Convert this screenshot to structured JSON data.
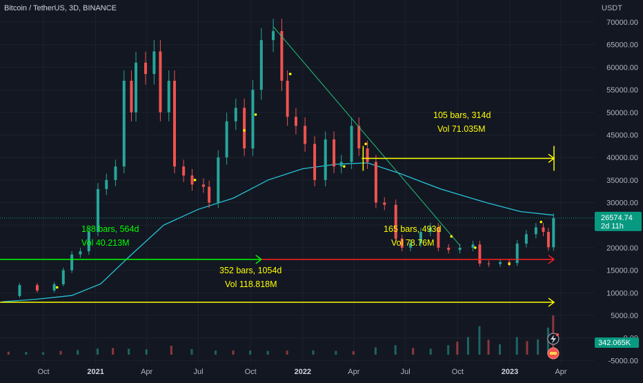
{
  "header": {
    "symbol_title": "Bitcoin / TetherUS, 3D, BINANCE",
    "currency": "USDT"
  },
  "chart_data": {
    "type": "candlestick",
    "y_ticks": [
      "70000.00",
      "65000.00",
      "60000.00",
      "55000.00",
      "50000.00",
      "45000.00",
      "40000.00",
      "35000.00",
      "30000.00",
      "25000.00",
      "20000.00",
      "15000.00",
      "10000.00",
      "5000.00",
      "0.00",
      "-5000.00"
    ],
    "x_ticks": [
      "Oct",
      "2021",
      "Apr",
      "Jul",
      "Oct",
      "2022",
      "Apr",
      "Jul",
      "Oct",
      "2023",
      "Apr"
    ],
    "ylim": [
      -5000,
      71500
    ],
    "price_series": [
      {
        "date": "2020-07-20",
        "close": 9300
      },
      {
        "date": "2020-08-20",
        "close": 11700
      },
      {
        "date": "2020-09-20",
        "close": 10500
      },
      {
        "date": "2020-10-20",
        "close": 11900
      },
      {
        "date": "2020-11-05",
        "close": 15000
      },
      {
        "date": "2020-11-20",
        "close": 18500
      },
      {
        "date": "2020-12-05",
        "close": 19200
      },
      {
        "date": "2020-12-20",
        "close": 23500
      },
      {
        "date": "2021-01-05",
        "close": 33000
      },
      {
        "date": "2021-01-20",
        "close": 35000
      },
      {
        "date": "2021-02-05",
        "close": 38000
      },
      {
        "date": "2021-02-20",
        "close": 57000
      },
      {
        "date": "2021-03-05",
        "close": 50000
      },
      {
        "date": "2021-03-13",
        "close": 61000
      },
      {
        "date": "2021-03-30",
        "close": 58500
      },
      {
        "date": "2021-04-14",
        "close": 63500
      },
      {
        "date": "2021-04-25",
        "close": 50000
      },
      {
        "date": "2021-05-10",
        "close": 57000
      },
      {
        "date": "2021-05-20",
        "close": 38000
      },
      {
        "date": "2021-06-05",
        "close": 36000
      },
      {
        "date": "2021-06-20",
        "close": 34000
      },
      {
        "date": "2021-07-10",
        "close": 33500
      },
      {
        "date": "2021-07-20",
        "close": 30000
      },
      {
        "date": "2021-08-05",
        "close": 40000
      },
      {
        "date": "2021-08-20",
        "close": 48000
      },
      {
        "date": "2021-09-05",
        "close": 51000
      },
      {
        "date": "2021-09-20",
        "close": 42000
      },
      {
        "date": "2021-10-05",
        "close": 55000
      },
      {
        "date": "2021-10-20",
        "close": 66000
      },
      {
        "date": "2021-11-10",
        "close": 68000
      },
      {
        "date": "2021-11-25",
        "close": 57000
      },
      {
        "date": "2021-12-05",
        "close": 49000
      },
      {
        "date": "2021-12-20",
        "close": 47000
      },
      {
        "date": "2022-01-05",
        "close": 43000
      },
      {
        "date": "2022-01-22",
        "close": 35000
      },
      {
        "date": "2022-02-10",
        "close": 44000
      },
      {
        "date": "2022-02-25",
        "close": 38000
      },
      {
        "date": "2022-03-10",
        "close": 39000
      },
      {
        "date": "2022-03-28",
        "close": 47000
      },
      {
        "date": "2022-04-10",
        "close": 42000
      },
      {
        "date": "2022-04-25",
        "close": 39000
      },
      {
        "date": "2022-05-10",
        "close": 30000
      },
      {
        "date": "2022-05-25",
        "close": 29500
      },
      {
        "date": "2022-06-14",
        "close": 22000
      },
      {
        "date": "2022-06-25",
        "close": 20000
      },
      {
        "date": "2022-07-10",
        "close": 21000
      },
      {
        "date": "2022-07-28",
        "close": 23500
      },
      {
        "date": "2022-08-14",
        "close": 24500
      },
      {
        "date": "2022-08-28",
        "close": 20000
      },
      {
        "date": "2022-09-15",
        "close": 19500
      },
      {
        "date": "2022-10-05",
        "close": 20000
      },
      {
        "date": "2022-10-28",
        "close": 20700
      },
      {
        "date": "2022-11-09",
        "close": 16500
      },
      {
        "date": "2022-11-25",
        "close": 16400
      },
      {
        "date": "2022-12-15",
        "close": 16800
      },
      {
        "date": "2022-12-31",
        "close": 16600
      },
      {
        "date": "2023-01-14",
        "close": 20900
      },
      {
        "date": "2023-01-30",
        "close": 23000
      },
      {
        "date": "2023-02-16",
        "close": 24500
      },
      {
        "date": "2023-03-01",
        "close": 23500
      },
      {
        "date": "2023-03-10",
        "close": 20100
      },
      {
        "date": "2023-03-19",
        "close": 26574.74
      }
    ],
    "ma_series": [
      {
        "date": "2020-07-20",
        "value": 8000
      },
      {
        "date": "2020-09-20",
        "value": 8600
      },
      {
        "date": "2020-11-20",
        "value": 9400
      },
      {
        "date": "2021-01-10",
        "value": 12000
      },
      {
        "date": "2021-03-01",
        "value": 18000
      },
      {
        "date": "2021-05-01",
        "value": 25000
      },
      {
        "date": "2021-07-01",
        "value": 28500
      },
      {
        "date": "2021-09-01",
        "value": 31000
      },
      {
        "date": "2021-11-01",
        "value": 35000
      },
      {
        "date": "2022-01-01",
        "value": 37500
      },
      {
        "date": "2022-03-01",
        "value": 38500
      },
      {
        "date": "2022-04-25",
        "value": 38800
      },
      {
        "date": "2022-06-20",
        "value": 36500
      },
      {
        "date": "2022-09-01",
        "value": 33000
      },
      {
        "date": "2022-11-20",
        "value": 30000
      },
      {
        "date": "2023-01-20",
        "value": 28000
      },
      {
        "date": "2023-03-19",
        "value": 27200
      }
    ],
    "volume_series": [
      {
        "date": "2020-08-01",
        "value": 1100
      },
      {
        "date": "2020-09-01",
        "value": 1000
      },
      {
        "date": "2020-10-01",
        "value": 900
      },
      {
        "date": "2020-11-01",
        "value": 1400
      },
      {
        "date": "2020-12-01",
        "value": 1700
      },
      {
        "date": "2021-01-05",
        "value": 2300
      },
      {
        "date": "2021-02-01",
        "value": 2500
      },
      {
        "date": "2021-03-01",
        "value": 2200
      },
      {
        "date": "2021-04-01",
        "value": 2000
      },
      {
        "date": "2021-05-15",
        "value": 3300
      },
      {
        "date": "2021-06-20",
        "value": 2100
      },
      {
        "date": "2021-08-01",
        "value": 1500
      },
      {
        "date": "2021-09-01",
        "value": 1600
      },
      {
        "date": "2021-10-01",
        "value": 1500
      },
      {
        "date": "2021-11-01",
        "value": 1400
      },
      {
        "date": "2021-12-05",
        "value": 1500
      },
      {
        "date": "2022-01-20",
        "value": 1600
      },
      {
        "date": "2022-03-01",
        "value": 1400
      },
      {
        "date": "2022-04-01",
        "value": 1300
      },
      {
        "date": "2022-05-10",
        "value": 2700
      },
      {
        "date": "2022-06-14",
        "value": 3500
      },
      {
        "date": "2022-07-15",
        "value": 2500
      },
      {
        "date": "2022-08-15",
        "value": 2200
      },
      {
        "date": "2022-09-15",
        "value": 3500
      },
      {
        "date": "2022-10-01",
        "value": 4800
      },
      {
        "date": "2022-10-20",
        "value": 6500
      },
      {
        "date": "2022-11-09",
        "value": 10500
      },
      {
        "date": "2022-11-25",
        "value": 5500
      },
      {
        "date": "2022-12-15",
        "value": 3800
      },
      {
        "date": "2023-01-14",
        "value": 6500
      },
      {
        "date": "2023-02-01",
        "value": 5000
      },
      {
        "date": "2023-02-20",
        "value": 5600
      },
      {
        "date": "2023-03-10",
        "value": 10000
      },
      {
        "date": "2023-03-19",
        "value": 14500
      }
    ],
    "current_price": {
      "value": 26574.74,
      "label": "26574.74",
      "countdown": "2d 11h"
    },
    "volume_label": "342.065K",
    "measures": [
      {
        "name": "measure-2021-rally",
        "from_date": "2020-07-10",
        "to_date": "2021-10-20",
        "price": 17400,
        "color": "#00ff00",
        "bars_label": "188 bars, 564d",
        "vol_label": "Vol 40.213M"
      },
      {
        "name": "measure-bear-range",
        "from_date": "2021-10-20",
        "to_date": "2023-03-21",
        "price": 17400,
        "color": "#ff1f1f",
        "bars_label": "165 bars, 493d",
        "vol_label": "Vol 78.76M"
      },
      {
        "name": "measure-long-range",
        "from_date": "2020-07-10",
        "to_date": "2023-03-21",
        "price": 7900,
        "color": "#ffff00",
        "bars_label": "352 bars, 1054d",
        "vol_label": "Vol 118.818M"
      },
      {
        "name": "measure-current-range",
        "from_date": "2022-04-15",
        "to_date": "2023-03-21",
        "price": 39800,
        "color": "#ffff00",
        "bars_label": "105 bars, 314d",
        "vol_label": "Vol 71.035M"
      }
    ],
    "trendline": {
      "from": {
        "date": "2021-11-10",
        "price": 69000
      },
      "to": {
        "date": "2022-10-05",
        "price": 20500
      },
      "color": "#1fc77a"
    },
    "dots": [
      {
        "date": "2020-10-25",
        "price": 11200
      },
      {
        "date": "2021-06-25",
        "price": 35000
      },
      {
        "date": "2021-09-20",
        "price": 46000
      },
      {
        "date": "2021-10-10",
        "price": 49500
      },
      {
        "date": "2021-12-10",
        "price": 58500
      },
      {
        "date": "2022-03-15",
        "price": 38000
      },
      {
        "date": "2022-04-22",
        "price": 43000
      },
      {
        "date": "2022-09-20",
        "price": 22500
      },
      {
        "date": "2022-11-01",
        "price": 20000
      },
      {
        "date": "2022-12-31",
        "price": 16400
      },
      {
        "date": "2023-02-25",
        "price": 25700
      }
    ],
    "colors": {
      "up": "#26a69a",
      "down": "#ef5350",
      "ma": "#26c6da",
      "grid": "#1e222d",
      "text": "#b2b5be",
      "price_tag": "#089981"
    }
  }
}
